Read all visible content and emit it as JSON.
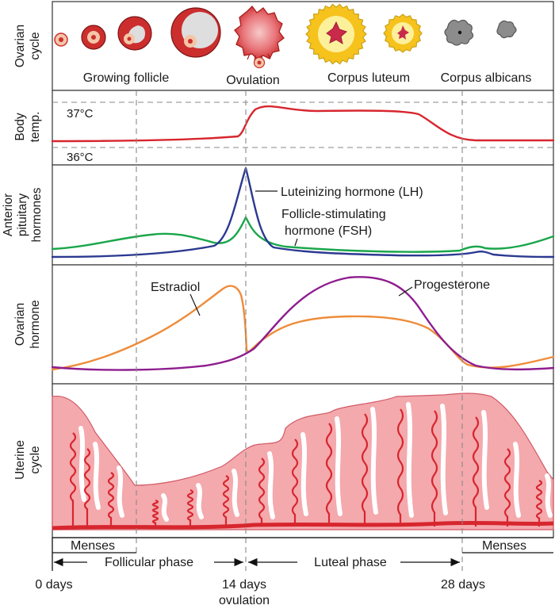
{
  "rows": {
    "ovarian_cycle": "Ovarian cycle",
    "body_temp": "Body temp.",
    "anterior_pituitary": "Anterior pituitary hormones",
    "ovarian_hormone": "Ovarian hormone",
    "uterine_cycle": "Uterine cycle"
  },
  "ovarian_stages": {
    "growing_follicle": "Growing follicle",
    "ovulation": "Ovulation",
    "corpus_luteum": "Corpus luteum",
    "corpus_albicans": "Corpus albicans"
  },
  "temperature": {
    "high": "37°C",
    "low": "36°C"
  },
  "pituitary": {
    "lh_label": "Luteinizing hormone (LH)",
    "fsh_label_line1": "Follicle-stimulating",
    "fsh_label_line2": "hormone (FSH)"
  },
  "ovarian_hormones": {
    "estradiol_label": "Estradiol",
    "progesterone_label": "Progesterone"
  },
  "phases": {
    "menses_start": "Menses",
    "menses_end": "Menses",
    "follicular": "Follicular phase",
    "luteal": "Luteal phase"
  },
  "timeline": {
    "day0": "0 days",
    "day14_line1": "14 days",
    "day14_line2": "ovulation",
    "day28": "28 days"
  },
  "colors": {
    "body_temp_curve": "#d7262e",
    "lh_curve": "#2b3990",
    "fsh_curve": "#1aa64b",
    "estradiol_curve": "#ee8c3a",
    "progesterone_curve": "#8e1d8e",
    "endometrium_fill": "#f4a9ad",
    "vessel": "#d7262e",
    "follicle_outer": "#cc2e2e",
    "corpus_luteum": "#f6c21c",
    "corpus_albicans": "#8c8c8c"
  }
}
